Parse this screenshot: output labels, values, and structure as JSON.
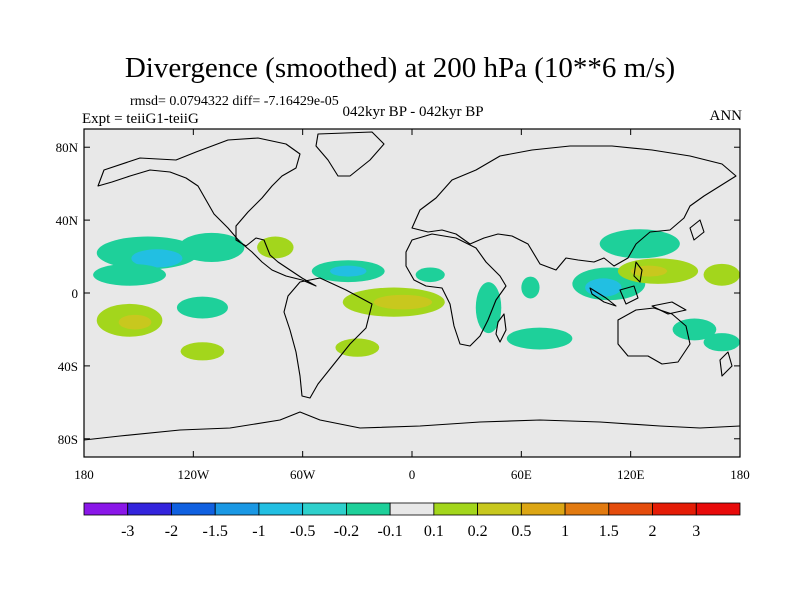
{
  "header": {
    "title": "Divergence (smoothed) at 200 hPa (10**6 m/s)",
    "stats": "rmsd= 0.0794322 diff= -7.16429e-05",
    "experiment": "Expt = teiiG1-teiiG",
    "period": "042kyr BP - 042kyr BP",
    "season": "ANN"
  },
  "map": {
    "projection": "cylindrical equidistant",
    "lon_range": [
      -180,
      180
    ],
    "lat_range": [
      -90,
      90
    ],
    "x_ticks": [
      {
        "value": -180,
        "label": "180"
      },
      {
        "value": -120,
        "label": "120W"
      },
      {
        "value": -60,
        "label": "60W"
      },
      {
        "value": 0,
        "label": "0"
      },
      {
        "value": 60,
        "label": "60E"
      },
      {
        "value": 120,
        "label": "120E"
      },
      {
        "value": 180,
        "label": "180"
      }
    ],
    "y_ticks": [
      {
        "value": 80,
        "label": "80N"
      },
      {
        "value": 40,
        "label": "40N"
      },
      {
        "value": 0,
        "label": "0"
      },
      {
        "value": -40,
        "label": "40S"
      },
      {
        "value": -80,
        "label": "80S"
      }
    ],
    "background_color": "#e8e8e8"
  },
  "colorbar": {
    "levels": [
      "-3",
      "-2",
      "-1.5",
      "-1",
      "-0.5",
      "-0.2",
      "-0.1",
      "0.1",
      "0.2",
      "0.5",
      "1",
      "1.5",
      "2",
      "3"
    ],
    "colors": [
      "#8a17e8",
      "#3324dc",
      "#1060e0",
      "#1a98e4",
      "#22bfe2",
      "#2ed0cc",
      "#1ed09a",
      "#e8e8e8",
      "#a3d61c",
      "#c8c81e",
      "#dca614",
      "#e27a10",
      "#e44c0c",
      "#e41c06",
      "#e80a0a"
    ]
  },
  "field_patches": [
    {
      "name": "patch-npac-subtropic",
      "lon": -145,
      "lat": 22,
      "rx": 28,
      "ry": 9,
      "color": "#1ed09a"
    },
    {
      "name": "patch-npac-subtropic-core",
      "lon": -140,
      "lat": 19,
      "rx": 14,
      "ry": 5,
      "color": "#22bfe2"
    },
    {
      "name": "patch-npac-east",
      "lon": -110,
      "lat": 25,
      "rx": 18,
      "ry": 8,
      "color": "#1ed09a"
    },
    {
      "name": "patch-npac-equator",
      "lon": -155,
      "lat": 10,
      "rx": 20,
      "ry": 6,
      "color": "#1ed09a"
    },
    {
      "name": "patch-spac-west",
      "lon": -155,
      "lat": -15,
      "rx": 18,
      "ry": 9,
      "color": "#a3d61c"
    },
    {
      "name": "patch-spac-west-core",
      "lon": -152,
      "lat": -16,
      "rx": 9,
      "ry": 4,
      "color": "#c8c81e"
    },
    {
      "name": "patch-spac-central",
      "lon": -115,
      "lat": -8,
      "rx": 14,
      "ry": 6,
      "color": "#1ed09a"
    },
    {
      "name": "patch-spac-south",
      "lon": -115,
      "lat": -32,
      "rx": 12,
      "ry": 5,
      "color": "#a3d61c"
    },
    {
      "name": "patch-caribbean",
      "lon": -75,
      "lat": 25,
      "rx": 10,
      "ry": 6,
      "color": "#a3d61c"
    },
    {
      "name": "patch-natl-tropic",
      "lon": -35,
      "lat": 12,
      "rx": 20,
      "ry": 6,
      "color": "#1ed09a"
    },
    {
      "name": "patch-natl-tropic-core",
      "lon": -35,
      "lat": 12,
      "rx": 10,
      "ry": 3,
      "color": "#22bfe2"
    },
    {
      "name": "patch-atl-equator",
      "lon": -10,
      "lat": -5,
      "rx": 28,
      "ry": 8,
      "color": "#a3d61c"
    },
    {
      "name": "patch-atl-equator-core",
      "lon": -5,
      "lat": -5,
      "rx": 16,
      "ry": 4,
      "color": "#c8c81e"
    },
    {
      "name": "patch-satl",
      "lon": -30,
      "lat": -30,
      "rx": 12,
      "ry": 5,
      "color": "#a3d61c"
    },
    {
      "name": "patch-africa-west",
      "lon": 10,
      "lat": 10,
      "rx": 8,
      "ry": 4,
      "color": "#1ed09a"
    },
    {
      "name": "patch-indian-north",
      "lon": 65,
      "lat": 3,
      "rx": 5,
      "ry": 6,
      "color": "#1ed09a"
    },
    {
      "name": "patch-indian-central",
      "lon": 70,
      "lat": -25,
      "rx": 18,
      "ry": 6,
      "color": "#1ed09a"
    },
    {
      "name": "patch-east-africa",
      "lon": 42,
      "lat": -8,
      "rx": 7,
      "ry": 14,
      "color": "#1ed09a"
    },
    {
      "name": "patch-maritime",
      "lon": 108,
      "lat": 5,
      "rx": 20,
      "ry": 9,
      "color": "#1ed09a"
    },
    {
      "name": "patch-maritime-core",
      "lon": 105,
      "lat": 3,
      "rx": 10,
      "ry": 5,
      "color": "#22bfe2"
    },
    {
      "name": "patch-wpac-north",
      "lon": 125,
      "lat": 27,
      "rx": 22,
      "ry": 8,
      "color": "#1ed09a"
    },
    {
      "name": "patch-wpac-tropic",
      "lon": 135,
      "lat": 12,
      "rx": 22,
      "ry": 7,
      "color": "#a3d61c"
    },
    {
      "name": "patch-wpac-tropic-core",
      "lon": 130,
      "lat": 12,
      "rx": 10,
      "ry": 3,
      "color": "#c8c81e"
    },
    {
      "name": "patch-wpac-east",
      "lon": 170,
      "lat": 10,
      "rx": 10,
      "ry": 6,
      "color": "#a3d61c"
    },
    {
      "name": "patch-coral-sea",
      "lon": 155,
      "lat": -20,
      "rx": 12,
      "ry": 6,
      "color": "#1ed09a"
    },
    {
      "name": "patch-tasman",
      "lon": 170,
      "lat": -27,
      "rx": 10,
      "ry": 5,
      "color": "#1ed09a"
    }
  ]
}
